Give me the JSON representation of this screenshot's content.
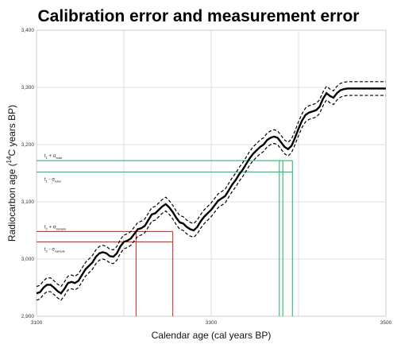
{
  "chart_data": {
    "type": "line",
    "title": "Calibration error and measurement error",
    "xlabel": "Calendar age (cal years BP)",
    "ylabel_prefix": "Radiocarbon age (",
    "ylabel_sup": "14",
    "ylabel_suffix": "C years BP)",
    "xlim": [
      3100,
      3500
    ],
    "ylim": [
      2900,
      3400
    ],
    "x_ticks": [
      3100,
      3300,
      3500
    ],
    "x_tick_labels": [
      "3100",
      "3300",
      "3500"
    ],
    "x_minor_gridlines": [
      3200,
      3400
    ],
    "y_ticks": [
      2900,
      3000,
      3100,
      3200,
      3300,
      3400
    ],
    "y_tick_labels": [
      "2,900",
      "3,000",
      "3,100",
      "3,200",
      "3,300",
      "3,400"
    ],
    "grid": true,
    "series": [
      {
        "role": "calibration_curve",
        "x": [
          3100,
          3104,
          3108,
          3112,
          3116,
          3120,
          3124,
          3128,
          3132,
          3136,
          3140,
          3144,
          3148,
          3152,
          3156,
          3160,
          3164,
          3168,
          3172,
          3176,
          3180,
          3184,
          3188,
          3192,
          3196,
          3200,
          3204,
          3208,
          3212,
          3216,
          3220,
          3224,
          3228,
          3232,
          3236,
          3240,
          3244,
          3248,
          3252,
          3256,
          3260,
          3264,
          3268,
          3272,
          3276,
          3280,
          3284,
          3288,
          3292,
          3296,
          3300,
          3304,
          3308,
          3312,
          3316,
          3320,
          3324,
          3328,
          3332,
          3336,
          3340,
          3344,
          3348,
          3352,
          3356,
          3360,
          3364,
          3368,
          3372,
          3376,
          3380,
          3384,
          3388,
          3392,
          3396,
          3400,
          3404,
          3408,
          3412,
          3416,
          3420,
          3424,
          3428,
          3432,
          3436,
          3440,
          3444,
          3448,
          3452,
          3456,
          3460,
          3464,
          3468,
          3472,
          3476,
          3480,
          3484,
          3488,
          3492,
          3496,
          3500
        ],
        "y": [
          2940,
          2942,
          2950,
          2955,
          2955,
          2950,
          2944,
          2940,
          2948,
          2958,
          2960,
          2958,
          2962,
          2972,
          2982,
          2988,
          2994,
          3004,
          3010,
          3012,
          3010,
          3005,
          3004,
          3010,
          3022,
          3030,
          3032,
          3036,
          3044,
          3052,
          3054,
          3058,
          3068,
          3078,
          3080,
          3086,
          3092,
          3096,
          3090,
          3082,
          3072,
          3064,
          3062,
          3056,
          3052,
          3050,
          3056,
          3066,
          3074,
          3080,
          3086,
          3094,
          3102,
          3106,
          3110,
          3120,
          3130,
          3138,
          3148,
          3156,
          3166,
          3176,
          3184,
          3190,
          3196,
          3200,
          3208,
          3212,
          3214,
          3212,
          3204,
          3196,
          3192,
          3198,
          3212,
          3228,
          3242,
          3252,
          3256,
          3258,
          3260,
          3266,
          3280,
          3290,
          3285,
          3282,
          3290,
          3295,
          3297,
          3298,
          3298,
          3298,
          3298,
          3298,
          3298,
          3298,
          3298,
          3298,
          3298,
          3298,
          3298
        ],
        "style": "solid-black-thick"
      },
      {
        "role": "upper_uncertainty_band",
        "offset": 12,
        "style": "dashed-black"
      },
      {
        "role": "lower_uncertainty_band",
        "offset": -12,
        "style": "dashed-black"
      }
    ],
    "annotations": {
      "total": {
        "color": "#2eb86f",
        "upper_label": "t",
        "upper_label_sub": "1",
        "upper_label_op": " + σ",
        "upper_label_sigma_sub": "total",
        "lower_label": "t",
        "lower_label_sub": "1",
        "lower_label_op": " - σ",
        "lower_label_sigma_sub": "total",
        "upper_y": 3172,
        "lower_y": 3152,
        "drop_x": [
          3378,
          3382,
          3393
        ]
      },
      "sample": {
        "color": "#e0302a",
        "upper_label": "t",
        "upper_label_sub": "2",
        "upper_label_op": " + σ",
        "upper_label_sigma_sub": "sample",
        "lower_label": "t",
        "lower_label_sub": "2",
        "lower_label_op": " - σ",
        "lower_label_sigma_sub": "sample",
        "upper_y": 3048,
        "lower_y": 3030,
        "drop_x": [
          3214,
          3256
        ]
      }
    }
  }
}
